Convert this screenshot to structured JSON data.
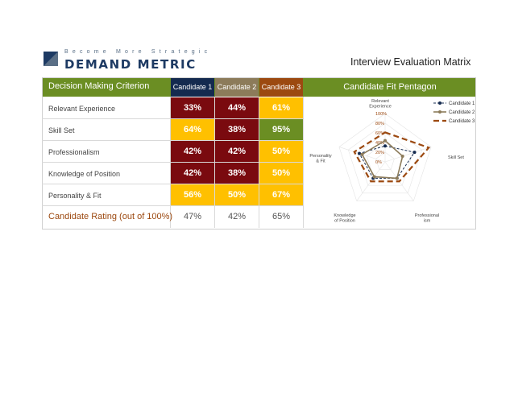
{
  "brand": {
    "tagline": "Become More Strategic",
    "name": "DEMAND METRIC",
    "colors": {
      "navy": "#1d3a63",
      "slate": "#5a6f86"
    }
  },
  "document": {
    "title": "Interview Evaluation Matrix"
  },
  "table": {
    "criterion_header": "Decision Making Criterion",
    "candidate_headers": [
      "Candidate 1",
      "Candidate 2",
      "Candidate 3"
    ],
    "pentagon_header": "Candidate Fit Pentagon",
    "header_colors": {
      "bar": "#6b8e23",
      "c1": "#142a4f",
      "c2": "#8c7b5a",
      "c3": "#9c4910"
    },
    "rows": [
      {
        "label": "Relevant Experience",
        "values": [
          "33%",
          "44%",
          "61%"
        ],
        "colors": [
          "red",
          "red",
          "yellow"
        ]
      },
      {
        "label": "Skill Set",
        "values": [
          "64%",
          "38%",
          "95%"
        ],
        "colors": [
          "yellow",
          "red",
          "green"
        ]
      },
      {
        "label": "Professionalism",
        "values": [
          "42%",
          "42%",
          "50%"
        ],
        "colors": [
          "red",
          "red",
          "yellow"
        ]
      },
      {
        "label": "Knowledge of Position",
        "values": [
          "42%",
          "38%",
          "50%"
        ],
        "colors": [
          "red",
          "red",
          "yellow"
        ]
      },
      {
        "label": "Personality & Fit",
        "values": [
          "56%",
          "50%",
          "67%"
        ],
        "colors": [
          "yellow",
          "yellow",
          "yellow"
        ]
      }
    ],
    "total": {
      "label": "Candidate Rating (out of 100%)",
      "values": [
        "47%",
        "42%",
        "65%"
      ]
    }
  },
  "chart_data": {
    "type": "radar",
    "axes": [
      "Relevant Experience",
      "Skill Set",
      "Professionalism",
      "Knowledge of Position",
      "Personality & Fit"
    ],
    "axis_label_lines": [
      [
        "Relevant",
        "Experience"
      ],
      [
        "Skill Set"
      ],
      [
        "Professional",
        "ism"
      ],
      [
        "Knowledge",
        "of Position"
      ],
      [
        "Personality",
        "& Fit"
      ]
    ],
    "ticks": [
      "100%",
      "80%",
      "60%",
      "40%",
      "20%",
      "0%"
    ],
    "rmax": 100,
    "legend_position": "top-right",
    "series": [
      {
        "name": "Candidate 1",
        "values": [
          33,
          64,
          42,
          42,
          56
        ],
        "color": "#142a4f"
      },
      {
        "name": "Candidate 2",
        "values": [
          44,
          38,
          42,
          38,
          50
        ],
        "color": "#8c7b5a"
      },
      {
        "name": "Candidate 3",
        "values": [
          61,
          95,
          50,
          50,
          67
        ],
        "color": "#9c4910"
      }
    ]
  }
}
